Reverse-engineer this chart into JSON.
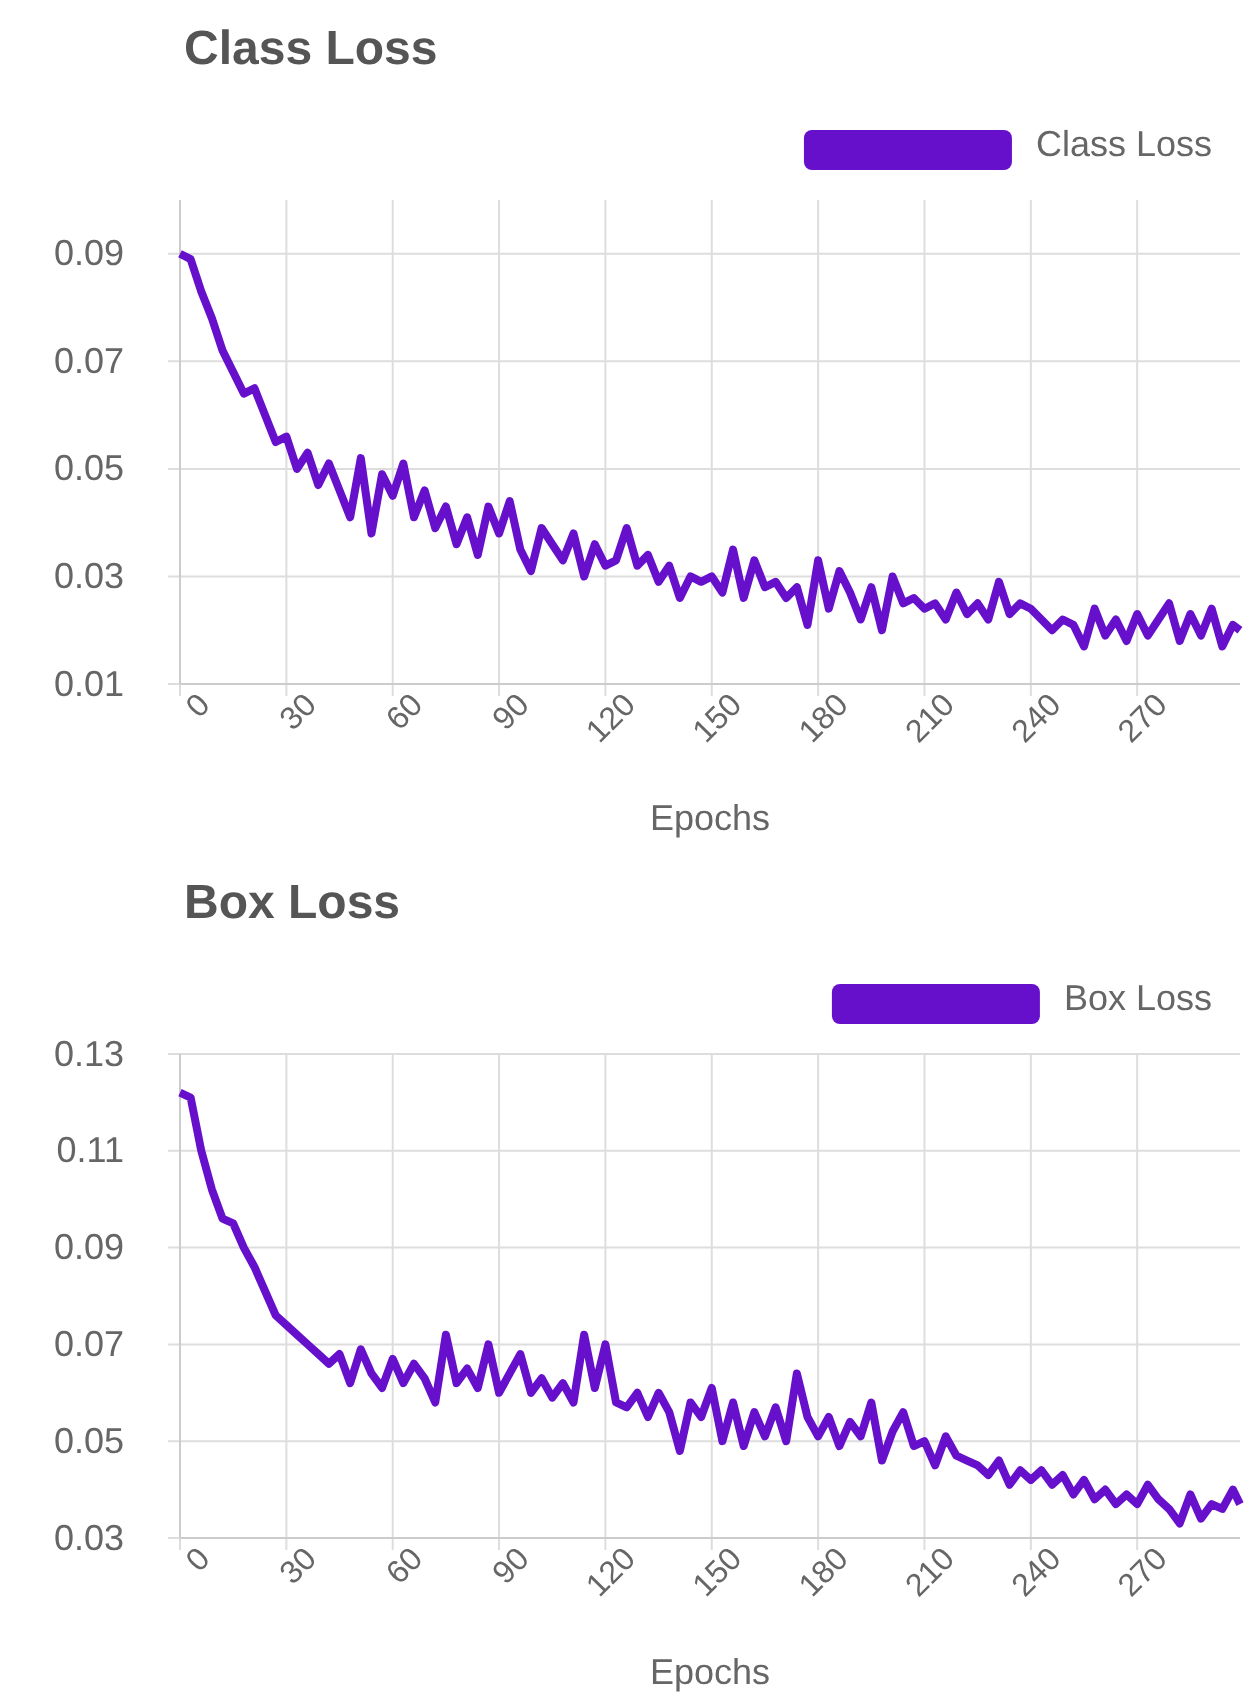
{
  "chart_data": [
    {
      "type": "line",
      "title": "Class Loss",
      "xlabel": "Epochs",
      "legend": "top right",
      "grid": true,
      "marker": "none",
      "line_style": "solid",
      "x": [
        0,
        3,
        6,
        9,
        12,
        15,
        18,
        21,
        24,
        27,
        30,
        33,
        36,
        39,
        42,
        45,
        48,
        51,
        54,
        57,
        60,
        63,
        66,
        69,
        72,
        75,
        78,
        81,
        84,
        87,
        90,
        93,
        96,
        99,
        102,
        105,
        108,
        111,
        114,
        117,
        120,
        123,
        126,
        129,
        132,
        135,
        138,
        141,
        144,
        147,
        150,
        153,
        156,
        159,
        162,
        165,
        168,
        171,
        174,
        177,
        180,
        183,
        186,
        189,
        192,
        195,
        198,
        201,
        204,
        207,
        210,
        213,
        216,
        219,
        222,
        225,
        228,
        231,
        234,
        237,
        240,
        243,
        246,
        249,
        252,
        255,
        258,
        261,
        264,
        267,
        270,
        273,
        276,
        279,
        282,
        285,
        288,
        291,
        294,
        297,
        299
      ],
      "xlim": [
        0,
        299
      ],
      "xticks": [
        0,
        30,
        60,
        90,
        120,
        150,
        180,
        210,
        240,
        270
      ],
      "ylim": [
        0.01,
        0.1
      ],
      "yticks": [
        0.01,
        0.03,
        0.05,
        0.07,
        0.09
      ],
      "series": [
        {
          "name": "Class Loss",
          "color": "#6610cc",
          "values": [
            0.09,
            0.089,
            0.083,
            0.078,
            0.072,
            0.068,
            0.064,
            0.065,
            0.06,
            0.055,
            0.056,
            0.05,
            0.053,
            0.047,
            0.051,
            0.046,
            0.041,
            0.052,
            0.038,
            0.049,
            0.045,
            0.051,
            0.041,
            0.046,
            0.039,
            0.043,
            0.036,
            0.041,
            0.034,
            0.043,
            0.038,
            0.044,
            0.035,
            0.031,
            0.039,
            0.036,
            0.033,
            0.038,
            0.03,
            0.036,
            0.032,
            0.033,
            0.039,
            0.032,
            0.034,
            0.029,
            0.032,
            0.026,
            0.03,
            0.029,
            0.03,
            0.027,
            0.035,
            0.026,
            0.033,
            0.028,
            0.029,
            0.026,
            0.028,
            0.021,
            0.033,
            0.024,
            0.031,
            0.027,
            0.022,
            0.028,
            0.02,
            0.03,
            0.025,
            0.026,
            0.024,
            0.025,
            0.022,
            0.027,
            0.023,
            0.025,
            0.022,
            0.029,
            0.023,
            0.025,
            0.024,
            0.022,
            0.02,
            0.022,
            0.021,
            0.017,
            0.024,
            0.019,
            0.022,
            0.018,
            0.023,
            0.019,
            0.022,
            0.025,
            0.018,
            0.023,
            0.019,
            0.024,
            0.017,
            0.021,
            0.02
          ]
        }
      ]
    },
    {
      "type": "line",
      "title": "Box Loss",
      "xlabel": "Epochs",
      "legend": "top right",
      "grid": true,
      "marker": "none",
      "line_style": "solid",
      "x": [
        0,
        3,
        6,
        9,
        12,
        15,
        18,
        21,
        24,
        27,
        30,
        33,
        36,
        39,
        42,
        45,
        48,
        51,
        54,
        57,
        60,
        63,
        66,
        69,
        72,
        75,
        78,
        81,
        84,
        87,
        90,
        93,
        96,
        99,
        102,
        105,
        108,
        111,
        114,
        117,
        120,
        123,
        126,
        129,
        132,
        135,
        138,
        141,
        144,
        147,
        150,
        153,
        156,
        159,
        162,
        165,
        168,
        171,
        174,
        177,
        180,
        183,
        186,
        189,
        192,
        195,
        198,
        201,
        204,
        207,
        210,
        213,
        216,
        219,
        222,
        225,
        228,
        231,
        234,
        237,
        240,
        243,
        246,
        249,
        252,
        255,
        258,
        261,
        264,
        267,
        270,
        273,
        276,
        279,
        282,
        285,
        288,
        291,
        294,
        297,
        299
      ],
      "xlim": [
        0,
        299
      ],
      "xticks": [
        0,
        30,
        60,
        90,
        120,
        150,
        180,
        210,
        240,
        270
      ],
      "ylim": [
        0.03,
        0.13
      ],
      "yticks": [
        0.03,
        0.05,
        0.07,
        0.09,
        0.11,
        0.13
      ],
      "series": [
        {
          "name": "Box Loss",
          "color": "#6610cc",
          "values": [
            0.122,
            0.121,
            0.11,
            0.102,
            0.096,
            0.095,
            0.09,
            0.086,
            0.081,
            0.076,
            0.074,
            0.072,
            0.07,
            0.068,
            0.066,
            0.068,
            0.062,
            0.069,
            0.064,
            0.061,
            0.067,
            0.062,
            0.066,
            0.063,
            0.058,
            0.072,
            0.062,
            0.065,
            0.061,
            0.07,
            0.06,
            0.064,
            0.068,
            0.06,
            0.063,
            0.059,
            0.062,
            0.058,
            0.072,
            0.061,
            0.07,
            0.058,
            0.057,
            0.06,
            0.055,
            0.06,
            0.056,
            0.048,
            0.058,
            0.055,
            0.061,
            0.05,
            0.058,
            0.049,
            0.056,
            0.051,
            0.057,
            0.05,
            0.064,
            0.055,
            0.051,
            0.055,
            0.049,
            0.054,
            0.051,
            0.058,
            0.046,
            0.052,
            0.056,
            0.049,
            0.05,
            0.045,
            0.051,
            0.047,
            0.046,
            0.045,
            0.043,
            0.046,
            0.041,
            0.044,
            0.042,
            0.044,
            0.041,
            0.043,
            0.039,
            0.042,
            0.038,
            0.04,
            0.037,
            0.039,
            0.037,
            0.041,
            0.038,
            0.036,
            0.033,
            0.039,
            0.034,
            0.037,
            0.036,
            0.04,
            0.037
          ]
        }
      ]
    }
  ]
}
